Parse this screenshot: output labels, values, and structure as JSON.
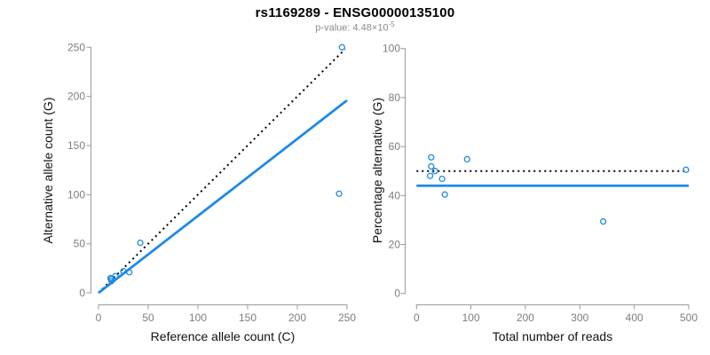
{
  "header": {
    "title": "rs1169289 - ENSG00000135100",
    "pvalue_prefix": "p-value: 4.48×10",
    "pvalue_exponent": "-5"
  },
  "colors": {
    "accent": "#1E8AE8",
    "reference_line": "#000000",
    "axis_line": "#9A9A9A",
    "tick_label": "#7D7D7D",
    "axis_label": "#111111",
    "subtitle": "#8A8A8A"
  },
  "chart_data": [
    {
      "type": "scatter",
      "name": "allele-counts",
      "xlabel": "Reference allele count (C)",
      "ylabel": "Alternative allele count (G)",
      "xlim": [
        0,
        250
      ],
      "ylim": [
        0,
        250
      ],
      "xticks": [
        0,
        50,
        100,
        150,
        200,
        250
      ],
      "yticks": [
        0,
        50,
        100,
        150,
        200,
        250
      ],
      "grid": false,
      "points": [
        [
          12,
          15
        ],
        [
          13,
          14
        ],
        [
          13,
          12
        ],
        [
          17,
          17
        ],
        [
          25,
          22
        ],
        [
          31,
          21
        ],
        [
          42,
          51
        ],
        [
          242,
          101
        ],
        [
          245,
          250
        ]
      ],
      "lines": [
        {
          "name": "identity-line",
          "style": "dotted",
          "color": "#000000",
          "from": [
            0,
            0
          ],
          "to": [
            248,
            248
          ]
        },
        {
          "name": "regression-line",
          "style": "solid",
          "color": "#1E8AE8",
          "from": [
            0,
            0
          ],
          "to": [
            250,
            196
          ]
        }
      ]
    },
    {
      "type": "scatter",
      "name": "percentage-vs-reads",
      "xlabel": "Total number of reads",
      "ylabel": "Percentage alternative (G)",
      "xlim": [
        0,
        500
      ],
      "ylim": [
        0,
        100
      ],
      "xticks": [
        0,
        100,
        200,
        300,
        400,
        500
      ],
      "yticks": [
        0,
        20,
        40,
        60,
        80,
        100
      ],
      "grid": false,
      "points": [
        [
          27,
          55.6
        ],
        [
          27,
          51.9
        ],
        [
          25,
          48
        ],
        [
          34,
          50
        ],
        [
          47,
          46.8
        ],
        [
          52,
          40.4
        ],
        [
          93,
          54.8
        ],
        [
          343,
          29.4
        ],
        [
          495,
          50.5
        ]
      ],
      "lines": [
        {
          "name": "fifty-percent-line",
          "style": "dotted",
          "color": "#000000",
          "from": [
            0,
            50
          ],
          "to": [
            500,
            50
          ]
        },
        {
          "name": "mean-percentage-line",
          "style": "solid",
          "color": "#1E8AE8",
          "from": [
            0,
            44
          ],
          "to": [
            500,
            44
          ]
        }
      ]
    }
  ]
}
